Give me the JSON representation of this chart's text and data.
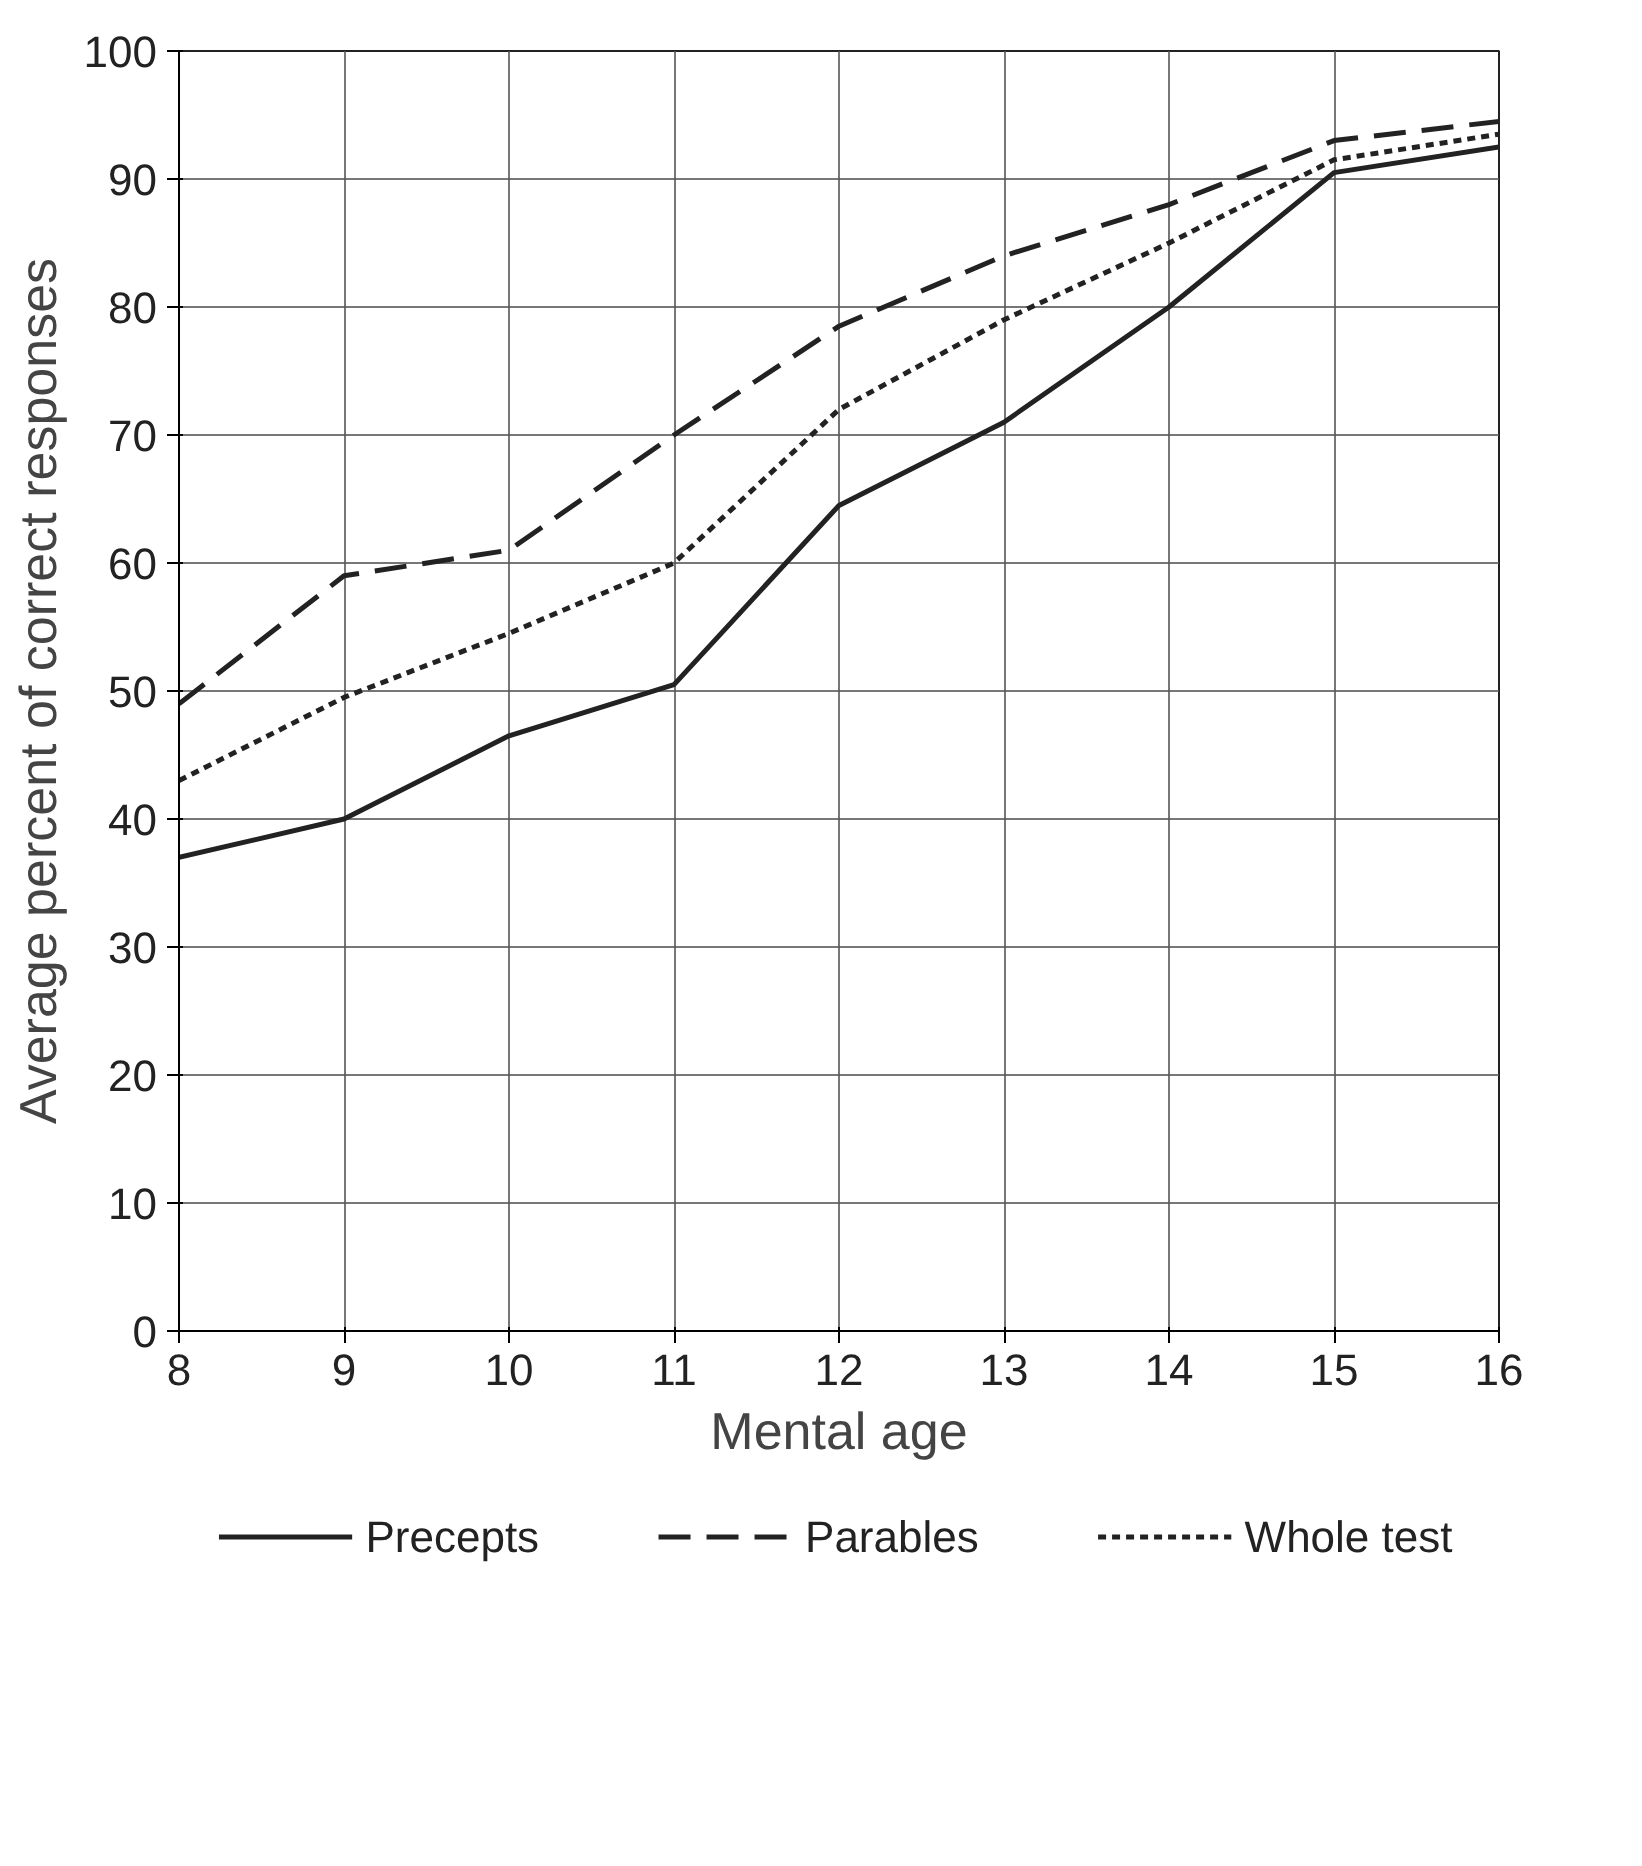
{
  "chart_data": {
    "type": "line",
    "xlabel": "Mental age",
    "ylabel": "Average percent of correct responses",
    "x": [
      8,
      9,
      10,
      11,
      12,
      13,
      14,
      15,
      16
    ],
    "series": [
      {
        "name": "Precepts",
        "color": "#222222",
        "line_style": "solid",
        "values": [
          37,
          40,
          46.5,
          50.5,
          64.5,
          71,
          80,
          90.5,
          92.5
        ]
      },
      {
        "name": "Parables",
        "color": "#222222",
        "line_style": "dashed",
        "values": [
          49,
          59,
          61,
          70,
          78.5,
          84,
          88,
          93,
          94.5
        ]
      },
      {
        "name": "Whole test",
        "color": "#222222",
        "line_style": "dotted",
        "values": [
          43,
          49.5,
          54.5,
          60,
          72,
          79,
          85,
          91.5,
          93.5
        ]
      }
    ],
    "xlim": [
      8,
      16
    ],
    "ylim": [
      0,
      100
    ],
    "xticks": [
      8,
      9,
      10,
      11,
      12,
      13,
      14,
      15,
      16
    ],
    "yticks": [
      0,
      10,
      20,
      30,
      40,
      50,
      60,
      70,
      80,
      90,
      100
    ],
    "grid": true,
    "legend": "bottom",
    "marker": "none"
  }
}
